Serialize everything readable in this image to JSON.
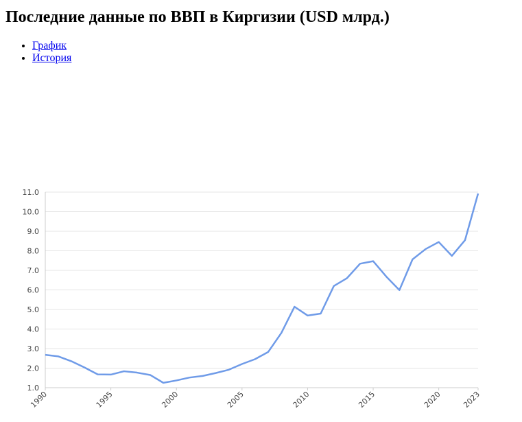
{
  "header": {
    "title": "Последние данные по ВВП в Киргизии (USD млрд.)"
  },
  "links": [
    "График",
    "История"
  ],
  "chart_data": {
    "type": "line",
    "x": [
      1990,
      1991,
      1992,
      1993,
      1994,
      1995,
      1996,
      1997,
      1998,
      1999,
      2000,
      2001,
      2002,
      2003,
      2004,
      2005,
      2006,
      2007,
      2008,
      2009,
      2010,
      2011,
      2012,
      2013,
      2014,
      2015,
      2016,
      2017,
      2018,
      2019,
      2020,
      2021,
      2022,
      2023
    ],
    "values": [
      2.68,
      2.6,
      2.35,
      2.03,
      1.68,
      1.67,
      1.84,
      1.77,
      1.65,
      1.25,
      1.37,
      1.52,
      1.6,
      1.75,
      1.92,
      2.21,
      2.46,
      2.83,
      3.8,
      5.14,
      4.69,
      4.79,
      6.2,
      6.6,
      7.34,
      7.47,
      6.68,
      5.99,
      7.56,
      8.09,
      8.45,
      7.74,
      8.54,
      10.93
    ],
    "color": "#6f9be8",
    "xlim": [
      1990,
      2023
    ],
    "xticks": [
      1990,
      1995,
      2000,
      2005,
      2010,
      2015,
      2020,
      2023
    ],
    "ylim": [
      1,
      11
    ],
    "yticks": [
      {
        "value": 1,
        "label": "1.0"
      },
      {
        "value": 2,
        "label": "2.0"
      },
      {
        "value": 3,
        "label": "3.0"
      },
      {
        "value": 4,
        "label": "4.0"
      },
      {
        "value": 5,
        "label": "5.0"
      },
      {
        "value": 6,
        "label": "6.0"
      },
      {
        "value": 7,
        "label": "7.0"
      },
      {
        "value": 8,
        "label": "8.0"
      },
      {
        "value": 9,
        "label": "9.0"
      },
      {
        "value": 10,
        "label": "10.0"
      },
      {
        "value": 11,
        "label": "11.0"
      }
    ],
    "grid": true
  }
}
